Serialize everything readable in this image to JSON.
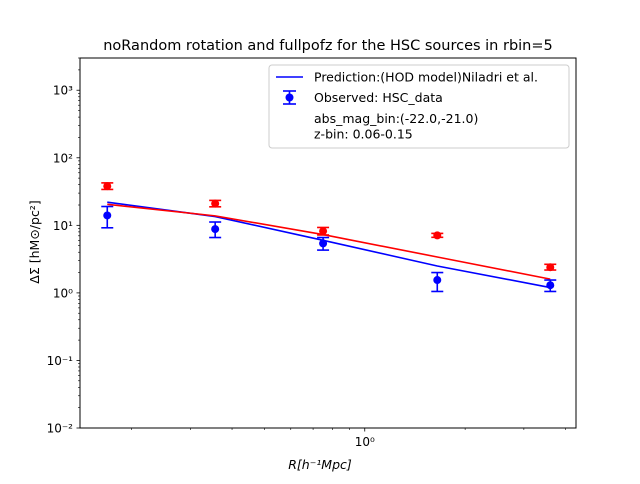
{
  "chart_data": {
    "type": "scatter",
    "title": "noRandom rotation and fullpofz for the HSC sources in rbin=5",
    "xlabel": "R[h⁻¹Mpc]",
    "ylabel": "ΔΣ [hM⊙/pc²]",
    "xscale": "log",
    "yscale": "log",
    "xlim": [
      0.14,
      4.3
    ],
    "ylim": [
      0.01,
      3000
    ],
    "x_tick_labels": [
      "10⁰"
    ],
    "y_tick_labels": [
      "10⁻²",
      "10⁻¹",
      "10⁰",
      "10¹",
      "10²",
      "10³"
    ],
    "legend_position": "top-right",
    "series": [
      {
        "name": "Prediction:(HOD model)Niladri et al.",
        "kind": "line",
        "color": "#0000ff",
        "x": [
          0.169,
          0.356,
          0.75,
          1.65,
          3.6
        ],
        "y": [
          22.0,
          13.5,
          6.0,
          2.5,
          1.2
        ]
      },
      {
        "kind": "line",
        "color": "#ff0000",
        "x": [
          0.169,
          0.356,
          0.75,
          1.65,
          3.6
        ],
        "y": [
          20.5,
          13.8,
          7.3,
          3.4,
          1.6
        ]
      },
      {
        "name": "Observed: HSC_data",
        "kind": "errorbar",
        "color": "#0000ff",
        "x": [
          0.169,
          0.356,
          0.75,
          1.65,
          3.6
        ],
        "y": [
          14.0,
          8.8,
          5.4,
          1.55,
          1.3
        ],
        "yerr_low": [
          4.8,
          2.2,
          1.1,
          0.5,
          0.25
        ],
        "yerr_high": [
          5.0,
          2.4,
          1.2,
          0.45,
          0.25
        ]
      },
      {
        "kind": "errorbar",
        "color": "#ff0000",
        "x": [
          0.169,
          0.356,
          0.75,
          1.65,
          3.6
        ],
        "y": [
          38.0,
          21.0,
          8.2,
          7.1,
          2.4
        ],
        "yerr_low": [
          4.0,
          2.2,
          1.0,
          0.45,
          0.22
        ],
        "yerr_high": [
          4.5,
          2.4,
          1.1,
          0.5,
          0.25
        ]
      }
    ],
    "legend_text": [
      "Prediction:(HOD model)Niladri et al.",
      "Observed: HSC_data",
      "abs_mag_bin:(-22.0,-21.0)",
      "z-bin: 0.06-0.15"
    ]
  }
}
